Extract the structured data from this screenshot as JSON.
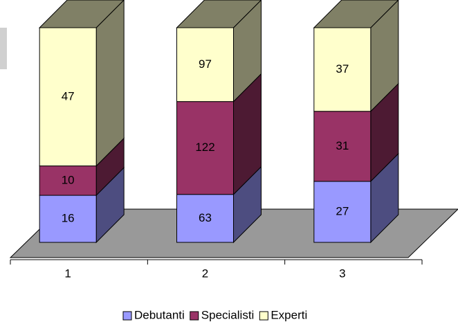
{
  "chart_data": {
    "type": "bar",
    "stacking": "percent",
    "categories": [
      "1",
      "2",
      "3"
    ],
    "series": [
      {
        "name": "Debutanti",
        "color": "#9999ff",
        "values": [
          16,
          63,
          27
        ]
      },
      {
        "name": "Specialisti",
        "color": "#993366",
        "values": [
          10,
          122,
          31
        ]
      },
      {
        "name": "Experti",
        "color": "#ffffcc",
        "values": [
          47,
          97,
          37
        ]
      }
    ],
    "legend": "bottom"
  }
}
